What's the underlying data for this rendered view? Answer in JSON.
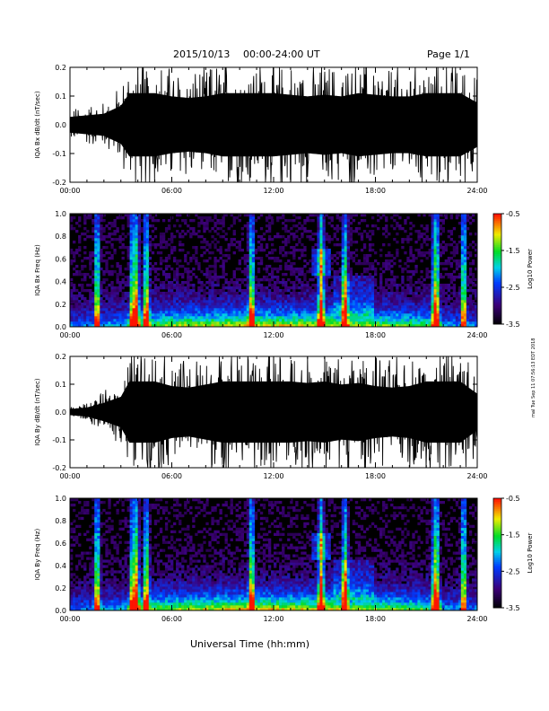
{
  "header": {
    "date": "2015/10/13",
    "time_range": "00:00-24:00 UT",
    "page": "Page 1/1"
  },
  "x_axis_title": "Universal Time (hh:mm)",
  "side_stamp": "mal Tue Sep 11 07:56:13 EDT 2018",
  "chart_data": [
    {
      "type": "line",
      "title": "",
      "ylabel": "IQA Bx dB/dt (nT/sec)",
      "xlabel": "",
      "ylim": [
        -0.2,
        0.2
      ],
      "xlim": [
        "00:00",
        "24:00"
      ],
      "x_ticks": [
        "00:00",
        "06:00",
        "12:00",
        "18:00",
        "24:00"
      ],
      "y_ticks": [
        "0.2",
        "0.1",
        "0.0",
        "-0.1",
        "-0.2"
      ],
      "series": [
        {
          "x_hours": [
            0,
            1,
            2,
            3,
            3.5,
            4,
            5,
            6,
            7,
            8,
            9,
            10,
            11,
            12,
            13,
            14,
            15,
            16,
            17,
            18,
            19,
            20,
            21,
            22,
            23,
            24
          ],
          "amplitude": [
            0.05,
            0.06,
            0.07,
            0.12,
            0.2,
            0.2,
            0.2,
            0.18,
            0.17,
            0.18,
            0.2,
            0.2,
            0.2,
            0.2,
            0.19,
            0.18,
            0.19,
            0.18,
            0.2,
            0.19,
            0.18,
            0.18,
            0.2,
            0.2,
            0.2,
            0.14
          ]
        }
      ]
    },
    {
      "type": "heatmap",
      "title": "",
      "ylabel": "IQA Bx Freq (Hz)",
      "xlabel": "",
      "ylim": [
        0.0,
        1.0
      ],
      "xlim": [
        "00:00",
        "24:00"
      ],
      "x_ticks": [
        "00:00",
        "06:00",
        "12:00",
        "18:00",
        "24:00"
      ],
      "y_ticks": [
        "1.0",
        "0.8",
        "0.6",
        "0.4",
        "0.2",
        "0.0"
      ],
      "colorbar": {
        "label": "Log10 Power",
        "range": [
          -3.5,
          -0.5
        ],
        "ticks": [
          "-0.5",
          "-1.5",
          "-2.5",
          "-3.5"
        ]
      },
      "bright_times_hours": [
        1.6,
        3.7,
        3.9,
        4.5,
        10.7,
        14.8,
        16.2,
        21.5,
        21.6,
        23.2
      ]
    },
    {
      "type": "line",
      "title": "",
      "ylabel": "IQA By dB/dt (nT/sec)",
      "xlabel": "",
      "ylim": [
        -0.2,
        0.2
      ],
      "xlim": [
        "00:00",
        "24:00"
      ],
      "x_ticks": [
        "00:00",
        "06:00",
        "12:00",
        "18:00",
        "24:00"
      ],
      "y_ticks": [
        "0.2",
        "0.1",
        "0.0",
        "-0.1",
        "-0.2"
      ],
      "series": [
        {
          "x_hours": [
            0,
            1,
            2,
            3,
            3.5,
            4,
            5,
            6,
            7,
            8,
            9,
            10,
            11,
            12,
            13,
            14,
            15,
            16,
            17,
            18,
            19,
            20,
            21,
            22,
            23,
            24
          ],
          "amplitude": [
            0.02,
            0.03,
            0.06,
            0.1,
            0.2,
            0.2,
            0.2,
            0.17,
            0.16,
            0.18,
            0.2,
            0.2,
            0.2,
            0.2,
            0.2,
            0.19,
            0.2,
            0.18,
            0.19,
            0.17,
            0.16,
            0.17,
            0.2,
            0.2,
            0.2,
            0.12
          ]
        }
      ]
    },
    {
      "type": "heatmap",
      "title": "",
      "ylabel": "IQA By Freq (Hz)",
      "xlabel": "",
      "ylim": [
        0.0,
        1.0
      ],
      "xlim": [
        "00:00",
        "24:00"
      ],
      "x_ticks": [
        "00:00",
        "06:00",
        "12:00",
        "18:00",
        "24:00"
      ],
      "y_ticks": [
        "1.0",
        "0.8",
        "0.6",
        "0.4",
        "0.2",
        "0.0"
      ],
      "colorbar": {
        "label": "Log10 Power",
        "range": [
          -3.5,
          -0.5
        ],
        "ticks": [
          "-0.5",
          "-1.5",
          "-2.5",
          "-3.5"
        ]
      },
      "bright_times_hours": [
        1.6,
        3.7,
        3.9,
        4.5,
        10.7,
        14.8,
        16.2,
        21.5,
        21.6,
        23.2
      ]
    }
  ]
}
